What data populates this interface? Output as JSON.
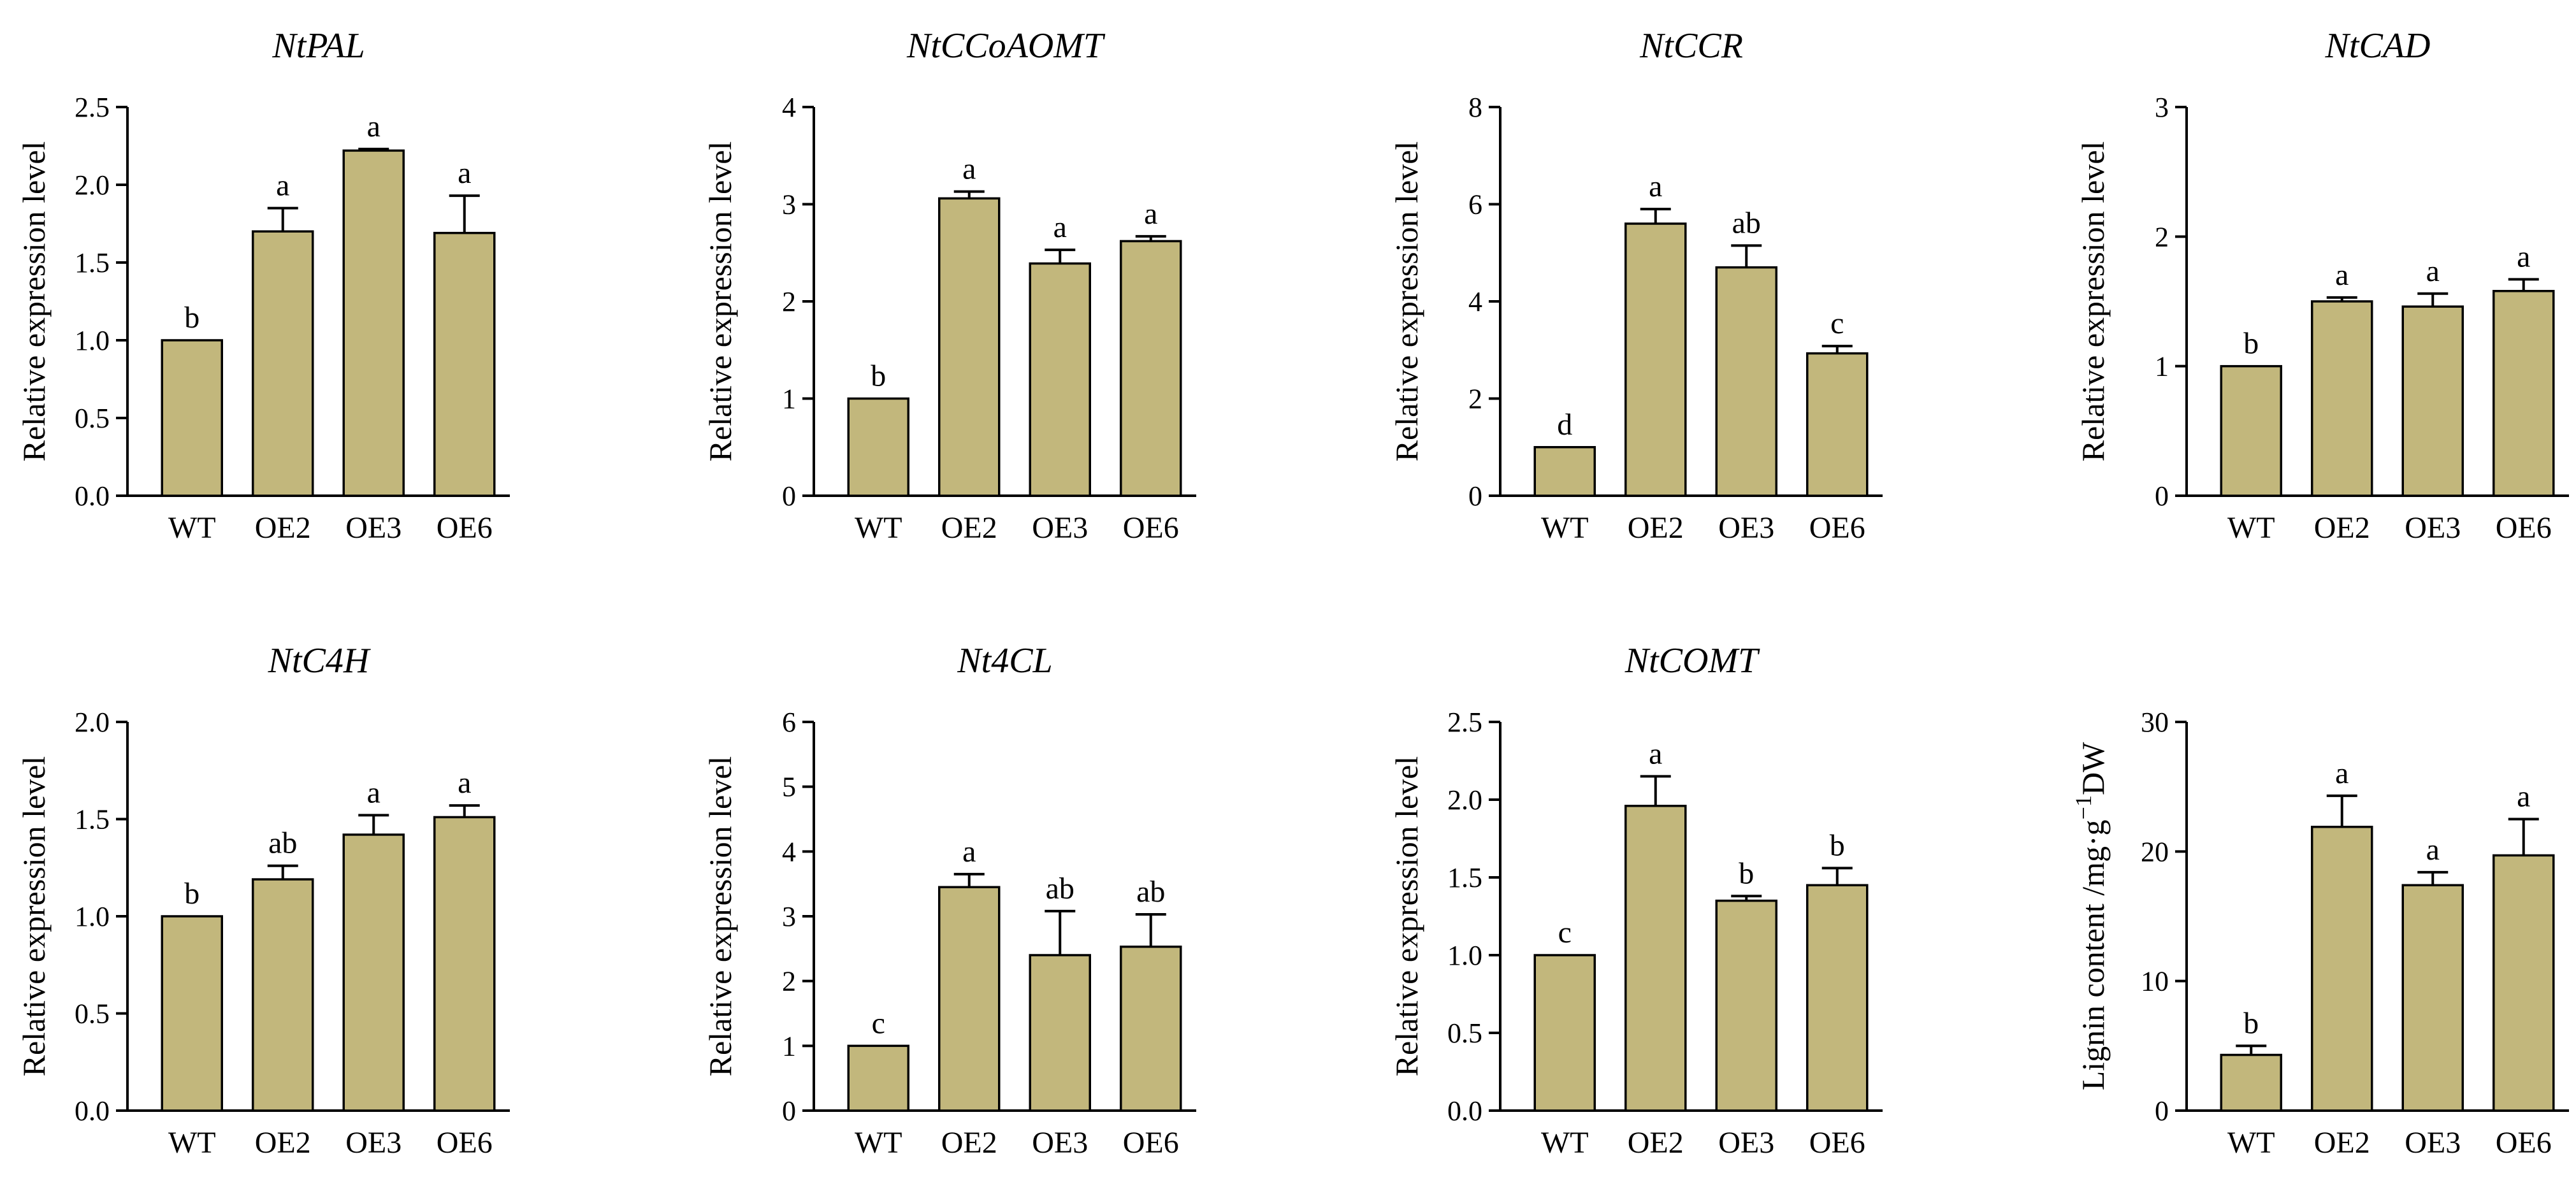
{
  "figure": {
    "bar_color": "#c2b77c",
    "line_color": "#000000"
  },
  "chart_data": [
    {
      "type": "bar",
      "title": "NtPAL",
      "ylabel": "Relative expression level",
      "xlabel": "",
      "categories": [
        "WT",
        "OE2",
        "OE3",
        "OE6"
      ],
      "values": [
        1.0,
        1.7,
        2.22,
        1.69
      ],
      "errors": [
        0,
        0.15,
        0.01,
        0.24
      ],
      "letters": [
        "b",
        "a",
        "a",
        "a"
      ],
      "ylim": [
        0,
        2.5
      ],
      "yticks": [
        0.0,
        0.5,
        1.0,
        1.5,
        2.0,
        2.5
      ],
      "yticklabels": [
        "0.0",
        "0.5",
        "1.0",
        "1.5",
        "2.0",
        "2.5"
      ]
    },
    {
      "type": "bar",
      "title": "NtCCoAOMT",
      "ylabel": "Relative expression level",
      "xlabel": "",
      "categories": [
        "WT",
        "OE2",
        "OE3",
        "OE6"
      ],
      "values": [
        1.0,
        3.06,
        2.39,
        2.62
      ],
      "errors": [
        0,
        0.07,
        0.14,
        0.05
      ],
      "letters": [
        "b",
        "a",
        "a",
        "a"
      ],
      "ylim": [
        0,
        4
      ],
      "yticks": [
        0,
        1,
        2,
        3,
        4
      ],
      "yticklabels": [
        "0",
        "1",
        "2",
        "3",
        "4"
      ]
    },
    {
      "type": "bar",
      "title": "NtCCR",
      "ylabel": "Relative expression level",
      "xlabel": "",
      "categories": [
        "WT",
        "OE2",
        "OE3",
        "OE6"
      ],
      "values": [
        1.0,
        5.6,
        4.7,
        2.93
      ],
      "errors": [
        0,
        0.3,
        0.45,
        0.15
      ],
      "letters": [
        "d",
        "a",
        "ab",
        "c"
      ],
      "ylim": [
        0,
        8
      ],
      "yticks": [
        0,
        2,
        4,
        6,
        8
      ],
      "yticklabels": [
        "0",
        "2",
        "4",
        "6",
        "8"
      ]
    },
    {
      "type": "bar",
      "title": "NtCAD",
      "ylabel": "Relative expression level",
      "xlabel": "",
      "categories": [
        "WT",
        "OE2",
        "OE3",
        "OE6"
      ],
      "values": [
        1.0,
        1.5,
        1.46,
        1.58
      ],
      "errors": [
        0,
        0.03,
        0.1,
        0.09
      ],
      "letters": [
        "b",
        "a",
        "a",
        "a"
      ],
      "ylim": [
        0,
        3
      ],
      "yticks": [
        0,
        1,
        2,
        3
      ],
      "yticklabels": [
        "0",
        "1",
        "2",
        "3"
      ]
    },
    {
      "type": "bar",
      "title": "NtC4H",
      "ylabel": "Relative expression level",
      "xlabel": "",
      "categories": [
        "WT",
        "OE2",
        "OE3",
        "OE6"
      ],
      "values": [
        1.0,
        1.19,
        1.42,
        1.51
      ],
      "errors": [
        0,
        0.07,
        0.1,
        0.06
      ],
      "letters": [
        "b",
        "ab",
        "a",
        "a"
      ],
      "ylim": [
        0,
        2.0
      ],
      "yticks": [
        0.0,
        0.5,
        1.0,
        1.5,
        2.0
      ],
      "yticklabels": [
        "0.0",
        "0.5",
        "1.0",
        "1.5",
        "2.0"
      ]
    },
    {
      "type": "bar",
      "title": "Nt4CL",
      "ylabel": "Relative expression level",
      "xlabel": "",
      "categories": [
        "WT",
        "OE2",
        "OE3",
        "OE6"
      ],
      "values": [
        1.0,
        3.45,
        2.4,
        2.53
      ],
      "errors": [
        0,
        0.2,
        0.68,
        0.5
      ],
      "letters": [
        "c",
        "a",
        "ab",
        "ab"
      ],
      "ylim": [
        0,
        6
      ],
      "yticks": [
        0,
        1,
        2,
        3,
        4,
        5,
        6
      ],
      "yticklabels": [
        "0",
        "1",
        "2",
        "3",
        "4",
        "5",
        "6"
      ]
    },
    {
      "type": "bar",
      "title": "NtCOMT",
      "ylabel": "Relative expression level",
      "xlabel": "",
      "categories": [
        "WT",
        "OE2",
        "OE3",
        "OE6"
      ],
      "values": [
        1.0,
        1.96,
        1.35,
        1.45
      ],
      "errors": [
        0,
        0.19,
        0.03,
        0.11
      ],
      "letters": [
        "c",
        "a",
        "b",
        "b"
      ],
      "ylim": [
        0,
        2.5
      ],
      "yticks": [
        0.0,
        0.5,
        1.0,
        1.5,
        2.0,
        2.5
      ],
      "yticklabels": [
        "0.0",
        "0.5",
        "1.0",
        "1.5",
        "2.0",
        "2.5"
      ]
    },
    {
      "type": "bar",
      "title": "",
      "ylabel": "Lignin content /mg·g",
      "ylabel_sup": "−1",
      "ylabel_suffix": "DW",
      "xlabel": "",
      "categories": [
        "WT",
        "OE2",
        "OE3",
        "OE6"
      ],
      "values": [
        4.3,
        21.9,
        17.4,
        19.7
      ],
      "errors": [
        0.7,
        2.4,
        1.0,
        2.8
      ],
      "letters": [
        "b",
        "a",
        "a",
        "a"
      ],
      "ylim": [
        0,
        30
      ],
      "yticks": [
        0,
        10,
        20,
        30
      ],
      "yticklabels": [
        "0",
        "10",
        "20",
        "30"
      ]
    }
  ]
}
